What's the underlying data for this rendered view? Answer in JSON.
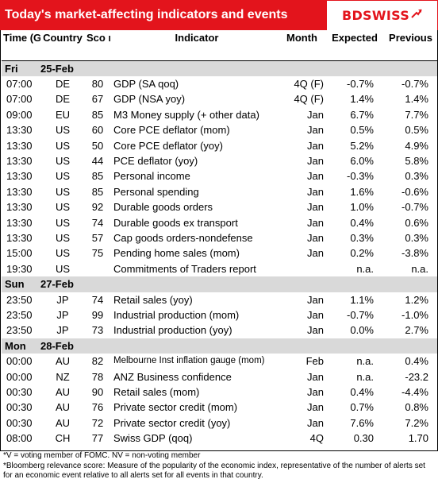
{
  "title": "Today's market-affecting indicators and events",
  "logo": {
    "text": "BDSWISS",
    "icon": "bdswiss-arrow-icon",
    "color": "#e3141c"
  },
  "columns": {
    "time": "Time (GMT)",
    "country": "Country",
    "score": "Sco re*",
    "indicator": "Indicator",
    "month": "Month",
    "expected": "Expected",
    "previous": "Previous"
  },
  "days": [
    {
      "day": "Fri",
      "date": "25-Feb",
      "rows": [
        {
          "time": "07:00",
          "country": "DE",
          "score": "80",
          "indicator": "GDP (SA qoq)",
          "month": "4Q (F)",
          "expected": "-0.7%",
          "previous": "-0.7%"
        },
        {
          "time": "07:00",
          "country": "DE",
          "score": "67",
          "indicator": "GDP (NSA yoy)",
          "month": "4Q (F)",
          "expected": "1.4%",
          "previous": "1.4%"
        },
        {
          "time": "09:00",
          "country": "EU",
          "score": "85",
          "indicator": "M3 Money supply (+ other data)",
          "month": "Jan",
          "expected": "6.7%",
          "previous": "7.7%"
        },
        {
          "time": "13:30",
          "country": "US",
          "score": "60",
          "indicator": "Core PCE deflator (mom)",
          "month": "Jan",
          "expected": "0.5%",
          "previous": "0.5%"
        },
        {
          "time": "13:30",
          "country": "US",
          "score": "50",
          "indicator": "Core PCE deflator (yoy)",
          "month": "Jan",
          "expected": "5.2%",
          "previous": "4.9%"
        },
        {
          "time": "13:30",
          "country": "US",
          "score": "44",
          "indicator": "PCE deflator (yoy)",
          "month": "Jan",
          "expected": "6.0%",
          "previous": "5.8%"
        },
        {
          "time": "13:30",
          "country": "US",
          "score": "85",
          "indicator": "Personal income",
          "month": "Jan",
          "expected": "-0.3%",
          "previous": "0.3%"
        },
        {
          "time": "13:30",
          "country": "US",
          "score": "85",
          "indicator": "Personal spending",
          "month": "Jan",
          "expected": "1.6%",
          "previous": "-0.6%"
        },
        {
          "time": "13:30",
          "country": "US",
          "score": "92",
          "indicator": "Durable goods orders",
          "month": "Jan",
          "expected": "1.0%",
          "previous": "-0.7%"
        },
        {
          "time": "13:30",
          "country": "US",
          "score": "74",
          "indicator": "Durable goods ex transport",
          "month": "Jan",
          "expected": "0.4%",
          "previous": "0.6%"
        },
        {
          "time": "13:30",
          "country": "US",
          "score": "57",
          "indicator": "Cap goods orders-nondefense",
          "month": "Jan",
          "expected": "0.3%",
          "previous": "0.3%"
        },
        {
          "time": "15:00",
          "country": "US",
          "score": "75",
          "indicator": "Pending home sales (mom)",
          "month": "Jan",
          "expected": "0.2%",
          "previous": "-3.8%"
        },
        {
          "time": "19:30",
          "country": "US",
          "score": "",
          "indicator": "Commitments of Traders  report",
          "month": "",
          "expected": "n.a.",
          "previous": "n.a."
        }
      ]
    },
    {
      "day": "Sun",
      "date": "27-Feb",
      "rows": [
        {
          "time": "23:50",
          "country": "JP",
          "score": "74",
          "indicator": "Retail sales (yoy)",
          "month": "Jan",
          "expected": "1.1%",
          "previous": "1.2%"
        },
        {
          "time": "23:50",
          "country": "JP",
          "score": "99",
          "indicator": "Industrial production (mom)",
          "month": "Jan",
          "expected": "-0.7%",
          "previous": "-1.0%"
        },
        {
          "time": "23:50",
          "country": "JP",
          "score": "73",
          "indicator": "Industrial production (yoy)",
          "month": "Jan",
          "expected": "0.0%",
          "previous": "2.7%"
        }
      ]
    },
    {
      "day": "Mon",
      "date": "28-Feb",
      "rows": [
        {
          "time": "00:00",
          "country": "AU",
          "score": "82",
          "indicator": "Melbourne Inst inflation gauge (mom)",
          "month": "Feb",
          "expected": "n.a.",
          "previous": "0.4%",
          "small": true
        },
        {
          "time": "00:00",
          "country": "NZ",
          "score": "78",
          "indicator": "ANZ Business confidence",
          "month": "Jan",
          "expected": "n.a.",
          "previous": "-23.2"
        },
        {
          "time": "00:30",
          "country": "AU",
          "score": "90",
          "indicator": "Retail sales (mom)",
          "month": "Jan",
          "expected": "0.4%",
          "previous": "-4.4%"
        },
        {
          "time": "00:30",
          "country": "AU",
          "score": "76",
          "indicator": "Private sector credit (mom)",
          "month": "Jan",
          "expected": "0.7%",
          "previous": "0.8%"
        },
        {
          "time": "00:30",
          "country": "AU",
          "score": "72",
          "indicator": "Private sector credit (yoy)",
          "month": "Jan",
          "expected": "7.6%",
          "previous": "7.2%"
        },
        {
          "time": "08:00",
          "country": "CH",
          "score": "77",
          "indicator": "Swiss GDP (qoq)",
          "month": "4Q",
          "expected": "0.30",
          "previous": "1.70"
        }
      ]
    }
  ],
  "footnotes": [
    "*V = voting member of FOMC. NV = non-voting member",
    "*Bloomberg relevance score:  Measure of the popularity of the economic index, representative of the number of alerts set for an economic event relative to all alerts set for all events in that country."
  ]
}
